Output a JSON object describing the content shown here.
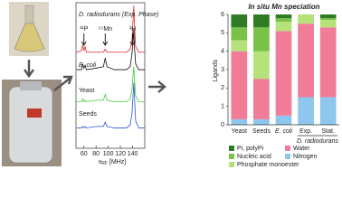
{
  "chart_data": [
    {
      "type": "line",
      "xlabel": {
        "symbol": "ν",
        "subscript": "RF",
        "unit": " [MHz]"
      },
      "xlim": [
        47,
        160
      ],
      "xticks": [
        60,
        80,
        100,
        120,
        140
      ],
      "ylim": [
        0,
        10
      ],
      "annotations": [
        "³¹P",
        "⁵⁵Mn",
        "¹H"
      ],
      "x": [
        48,
        56,
        58,
        60,
        62,
        64,
        80,
        92,
        95,
        98,
        110,
        130,
        136,
        139,
        141,
        142,
        143,
        145,
        150,
        160
      ],
      "series": [
        {
          "name": "D. radiodurans (Exp. Phase)",
          "color": "#e0262b",
          "values": [
            6.6,
            6.7,
            7.1,
            6.7,
            7.0,
            6.6,
            6.6,
            6.6,
            6.8,
            6.6,
            6.6,
            6.6,
            6.8,
            7.4,
            9.0,
            9.8,
            8.5,
            7.0,
            6.6,
            6.6
          ]
        },
        {
          "name": "E. coli",
          "color": "#111111",
          "values": [
            5.4,
            5.4,
            5.8,
            5.5,
            5.7,
            5.4,
            5.5,
            5.6,
            6.2,
            5.6,
            5.4,
            5.4,
            5.6,
            6.5,
            7.5,
            8.2,
            7.0,
            5.8,
            5.4,
            5.4
          ]
        },
        {
          "name": "Yeast",
          "color": "#3fcf3a",
          "values": [
            3.2,
            3.2,
            3.4,
            3.2,
            3.3,
            3.2,
            3.3,
            3.3,
            3.7,
            3.3,
            3.2,
            3.2,
            3.4,
            4.0,
            5.2,
            5.6,
            4.8,
            3.6,
            3.2,
            3.2
          ]
        },
        {
          "name": "Seeds",
          "color": "#2a55c8",
          "values": [
            1.4,
            1.4,
            1.5,
            1.4,
            1.5,
            1.4,
            1.5,
            1.5,
            1.8,
            1.5,
            1.4,
            1.4,
            1.6,
            2.4,
            3.8,
            4.5,
            3.6,
            1.9,
            1.4,
            1.4
          ]
        }
      ]
    },
    {
      "type": "stacked-bar",
      "title": "In situ Mn speciation",
      "ylabel": "Ligands",
      "categories": [
        "Yeast",
        "Seeds",
        "E. coli",
        "Exp.",
        "Stat."
      ],
      "group_label": "D. radiodurans",
      "ylim": [
        0,
        6
      ],
      "yticks": [
        0,
        1,
        2,
        3,
        4,
        5,
        6
      ],
      "series": [
        {
          "name": "Nitrogen",
          "color": "#8ec7ee",
          "values": [
            0.3,
            0.3,
            0.5,
            1.5,
            1.5
          ]
        },
        {
          "name": "Water",
          "color": "#f07c98",
          "values": [
            3.7,
            2.2,
            4.6,
            4.0,
            3.8
          ]
        },
        {
          "name": "Phosphate monoester",
          "color": "#b5e37a",
          "values": [
            0.6,
            1.5,
            0.5,
            0.5,
            0.4
          ]
        },
        {
          "name": "Nucleic acid",
          "color": "#79c247",
          "values": [
            0.7,
            1.3,
            0.2,
            0,
            0.1
          ]
        },
        {
          "name": "Pi, polyPi",
          "color": "#2f7a24",
          "values": [
            0.7,
            0.7,
            0.2,
            0,
            0.2
          ]
        }
      ]
    }
  ]
}
